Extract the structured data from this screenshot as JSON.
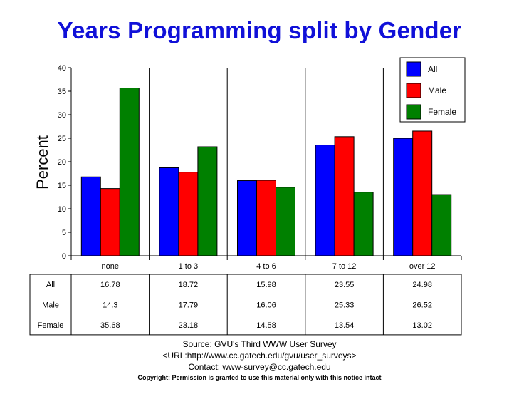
{
  "chart_data": {
    "type": "bar",
    "title": "Years Programming split by Gender",
    "ylabel": "Percent",
    "xlabel": "",
    "categories": [
      "none",
      "1 to 3",
      "4 to 6",
      "7 to 12",
      "over 12"
    ],
    "ylim": [
      0,
      40
    ],
    "yticks": [
      0,
      5,
      10,
      15,
      20,
      25,
      30,
      35,
      40
    ],
    "grid": "vertical separators between categories",
    "legend_position": "top-right",
    "series": [
      {
        "name": "All",
        "color": "#0000ff",
        "values": [
          16.78,
          18.72,
          15.98,
          23.55,
          24.98
        ],
        "labels": [
          "16.78",
          "18.72",
          "15.98",
          "23.55",
          "24.98"
        ]
      },
      {
        "name": "Male",
        "color": "#ff0000",
        "values": [
          14.3,
          17.79,
          16.06,
          25.33,
          26.52
        ],
        "labels": [
          "14.3",
          "17.79",
          "16.06",
          "25.33",
          "26.52"
        ]
      },
      {
        "name": "Female",
        "color": "#008000",
        "values": [
          35.68,
          23.18,
          14.58,
          13.54,
          13.02
        ],
        "labels": [
          "35.68",
          "23.18",
          "14.58",
          "13.54",
          "13.02"
        ]
      }
    ]
  },
  "footer": {
    "source": "Source: GVU's Third WWW User Survey",
    "url": "<URL:http://www.cc.gatech.edu/gvu/user_surveys>",
    "contact": "Contact: www-survey@cc.gatech.edu",
    "copyright": "Copyright: Permission is granted to use this material only with this notice intact"
  }
}
